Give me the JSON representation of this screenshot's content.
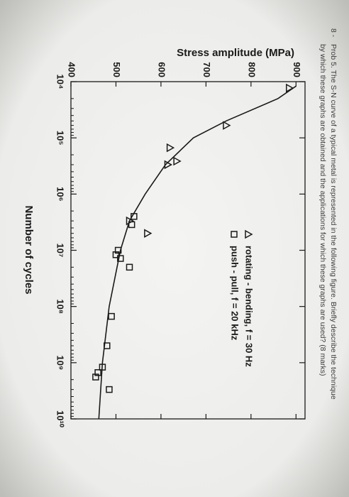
{
  "question": {
    "number": "8 -",
    "lines": [
      "Prob 5. The S-N curve of a typical metal is represented in the following figure. Briefly describe the technique",
      "by which these graphs are obtained and the applications for which these graphs are used? (8 marks)"
    ]
  },
  "chart_data": {
    "type": "scatter",
    "y_label": "Stress amplitude (MPa)",
    "x_label": "Number of cycles",
    "xscale": "log",
    "xlim": [
      10000,
      10000000000
    ],
    "ylim": [
      400,
      920
    ],
    "xticks": [
      {
        "value": 10000,
        "label": "10⁴"
      },
      {
        "value": 100000,
        "label": "10⁵"
      },
      {
        "value": 1000000,
        "label": "10⁶"
      },
      {
        "value": 10000000,
        "label": "10⁷"
      },
      {
        "value": 100000000,
        "label": "10⁸"
      },
      {
        "value": 1000000000,
        "label": "10⁹"
      },
      {
        "value": 10000000000,
        "label": "10¹⁰"
      }
    ],
    "yticks": [
      400,
      500,
      600,
      700,
      800,
      900
    ],
    "color": "#1a1a1a",
    "legend": "upper right",
    "series": [
      {
        "name": "rotating - bending, f = 30 Hz",
        "marker": "triangle",
        "x": [
          13000,
          60000,
          150000,
          260000,
          300000,
          3000000,
          5000000
        ],
        "values": [
          885,
          745,
          620,
          635,
          615,
          530,
          570
        ]
      },
      {
        "name": "push - pull, f = 20 kHz",
        "marker": "square",
        "x": [
          2500000,
          3500000,
          10000000,
          12000000,
          14000000,
          20000000,
          150000000,
          500000000,
          1200000000,
          1500000000,
          1800000000,
          3000000000
        ],
        "values": [
          540,
          535,
          505,
          500,
          510,
          530,
          490,
          480,
          470,
          460,
          455,
          485
        ]
      }
    ],
    "curve": {
      "x": [
        12000,
        20000,
        50000,
        100000,
        300000,
        1000000,
        3000000,
        10000000,
        100000000,
        1000000000,
        10000000000
      ],
      "values": [
        900,
        860,
        745,
        672,
        610,
        565,
        530,
        510,
        485,
        470,
        462
      ]
    }
  }
}
